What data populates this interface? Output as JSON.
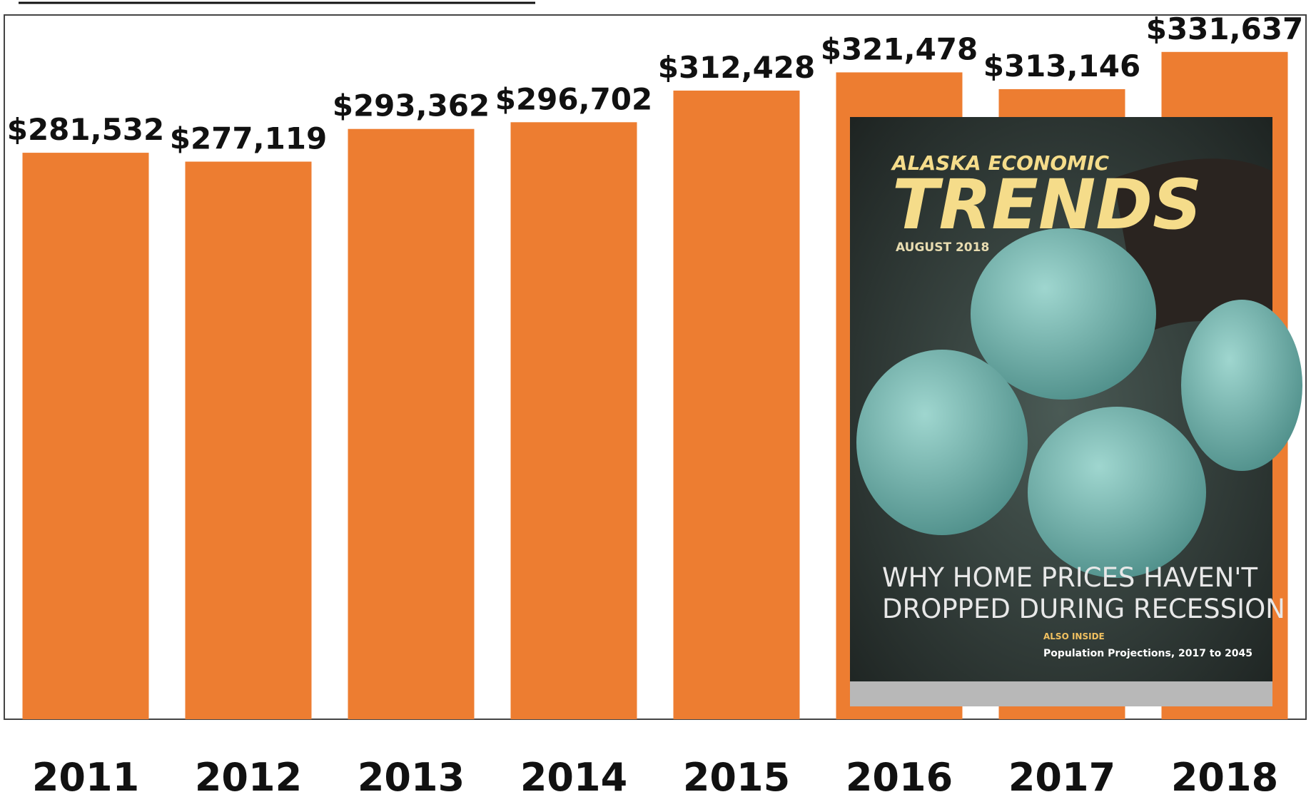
{
  "chart_data": {
    "type": "bar",
    "categories": [
      "2011",
      "2012",
      "2013",
      "2014",
      "2015",
      "2016",
      "2017",
      "2018"
    ],
    "values": [
      281532,
      277119,
      293362,
      296702,
      312428,
      321478,
      313146,
      331637
    ],
    "value_labels": [
      "$281,532",
      "$277,119",
      "$293,362",
      "$296,702",
      "$312,428",
      "$321,478",
      "$313,146",
      "$331,637"
    ],
    "color": "#ed7d31",
    "ylim": [
      0,
      350000
    ],
    "inset": {
      "masthead": "ALASKA ECONOMIC",
      "name": "TRENDS",
      "issue": "AUGUST 2018",
      "headline": [
        "WHY HOME PRICES HAVEN'T",
        "DROPPED DURING RECESSION"
      ],
      "also": "ALSO INSIDE",
      "feature": "Population Projections, 2017 to 2045"
    }
  }
}
